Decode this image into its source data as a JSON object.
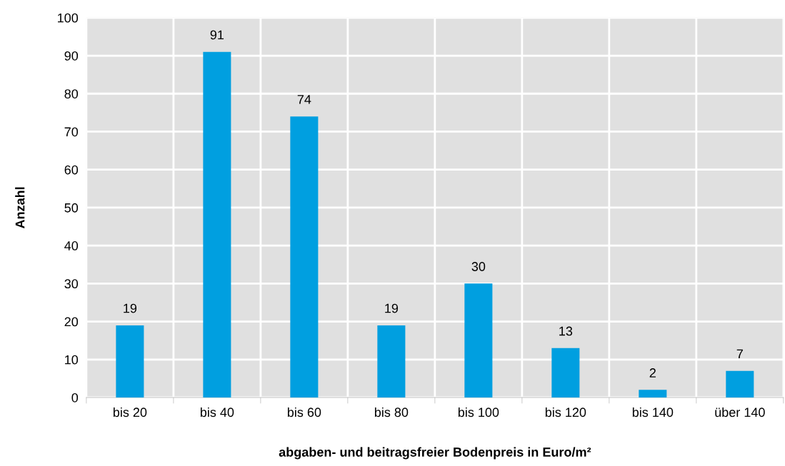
{
  "chart_data": {
    "type": "bar",
    "xlabel": "abgaben- und beitragsfreier Bodenpreis in Euro/m²",
    "ylabel": "Anzahl",
    "categories": [
      "bis 20",
      "bis 40",
      "bis 60",
      "bis 80",
      "bis 100",
      "bis 120",
      "bis 140",
      "über 140"
    ],
    "values": [
      19,
      91,
      74,
      19,
      30,
      13,
      2,
      7
    ],
    "color": "#009fe0",
    "ylim": [
      0,
      100
    ],
    "yticks": [
      0,
      10,
      20,
      30,
      40,
      50,
      60,
      70,
      80,
      90,
      100
    ],
    "grid": true,
    "data_labels": true
  }
}
